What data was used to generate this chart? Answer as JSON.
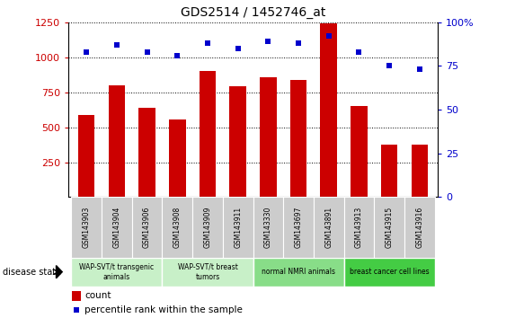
{
  "title": "GDS2514 / 1452746_at",
  "samples": [
    "GSM143903",
    "GSM143904",
    "GSM143906",
    "GSM143908",
    "GSM143909",
    "GSM143911",
    "GSM143330",
    "GSM143697",
    "GSM143891",
    "GSM143913",
    "GSM143915",
    "GSM143916"
  ],
  "bar_values": [
    590,
    800,
    640,
    555,
    900,
    790,
    855,
    835,
    1245,
    650,
    375,
    375
  ],
  "dot_values": [
    83,
    87,
    83,
    81,
    88,
    85,
    89,
    88,
    92,
    83,
    75,
    73
  ],
  "bar_color": "#cc0000",
  "dot_color": "#0000cc",
  "ylim_left": [
    0,
    1250
  ],
  "ylim_right": [
    0,
    100
  ],
  "yticks_left": [
    250,
    500,
    750,
    1000,
    1250
  ],
  "yticks_right": [
    0,
    25,
    50,
    75,
    100
  ],
  "groups": [
    {
      "label": "WAP-SVT/t transgenic\nanimals",
      "start": 0,
      "end": 3,
      "color": "#c8f0c8"
    },
    {
      "label": "WAP-SVT/t breast\ntumors",
      "start": 3,
      "end": 6,
      "color": "#c8f0c8"
    },
    {
      "label": "normal NMRI animals",
      "start": 6,
      "end": 9,
      "color": "#88dd88"
    },
    {
      "label": "breast cancer cell lines",
      "start": 9,
      "end": 12,
      "color": "#44cc44"
    }
  ],
  "disease_state_label": "disease state",
  "legend_count_label": "count",
  "legend_pct_label": "percentile rank within the sample",
  "background_color": "#ffffff",
  "plot_bg_color": "#ffffff",
  "grid_color": "#000000",
  "tick_label_color_left": "#cc0000",
  "tick_label_color_right": "#0000cc",
  "bar_width": 0.55,
  "sample_box_color": "#cccccc",
  "sample_box_divider": "#ffffff",
  "group_divider": "#ffffff"
}
